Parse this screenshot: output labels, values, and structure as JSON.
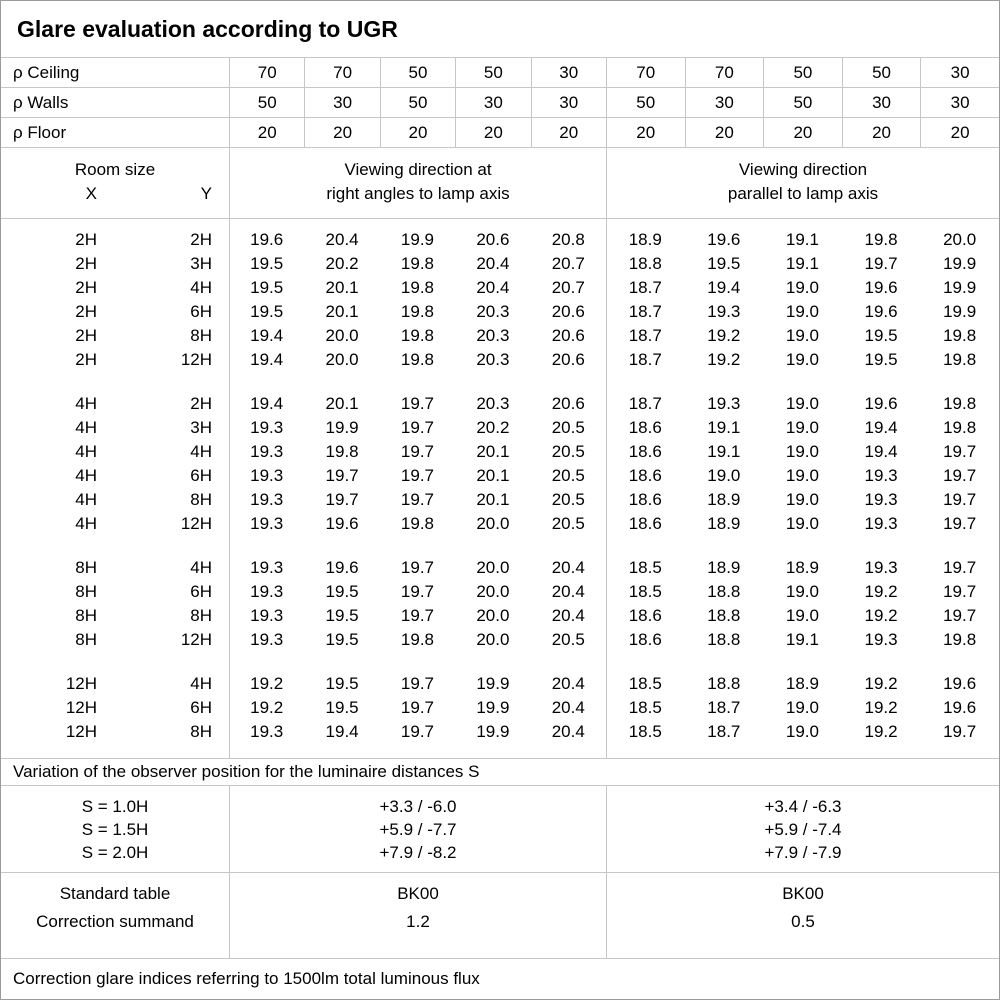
{
  "title": "Glare evaluation according to UGR",
  "reflectance_rows": [
    {
      "label": "ρ Ceiling",
      "values": [
        "70",
        "70",
        "50",
        "50",
        "30",
        "70",
        "70",
        "50",
        "50",
        "30"
      ]
    },
    {
      "label": "ρ Walls",
      "values": [
        "50",
        "30",
        "50",
        "30",
        "30",
        "50",
        "30",
        "50",
        "30",
        "30"
      ]
    },
    {
      "label": "ρ Floor",
      "values": [
        "20",
        "20",
        "20",
        "20",
        "20",
        "20",
        "20",
        "20",
        "20",
        "20"
      ]
    }
  ],
  "header": {
    "room_size": "Room size",
    "x": "X",
    "y": "Y"
  },
  "sections": {
    "left": {
      "line1": "Viewing direction at",
      "line2": "right angles to lamp axis"
    },
    "right": {
      "line1": "Viewing direction",
      "line2": "parallel to lamp axis"
    }
  },
  "blocks": [
    {
      "rows": [
        {
          "x": "2H",
          "y": "2H",
          "v": [
            "19.6",
            "20.4",
            "19.9",
            "20.6",
            "20.8",
            "18.9",
            "19.6",
            "19.1",
            "19.8",
            "20.0"
          ]
        },
        {
          "x": "2H",
          "y": "3H",
          "v": [
            "19.5",
            "20.2",
            "19.8",
            "20.4",
            "20.7",
            "18.8",
            "19.5",
            "19.1",
            "19.7",
            "19.9"
          ]
        },
        {
          "x": "2H",
          "y": "4H",
          "v": [
            "19.5",
            "20.1",
            "19.8",
            "20.4",
            "20.7",
            "18.7",
            "19.4",
            "19.0",
            "19.6",
            "19.9"
          ]
        },
        {
          "x": "2H",
          "y": "6H",
          "v": [
            "19.5",
            "20.1",
            "19.8",
            "20.3",
            "20.6",
            "18.7",
            "19.3",
            "19.0",
            "19.6",
            "19.9"
          ]
        },
        {
          "x": "2H",
          "y": "8H",
          "v": [
            "19.4",
            "20.0",
            "19.8",
            "20.3",
            "20.6",
            "18.7",
            "19.2",
            "19.0",
            "19.5",
            "19.8"
          ]
        },
        {
          "x": "2H",
          "y": "12H",
          "v": [
            "19.4",
            "20.0",
            "19.8",
            "20.3",
            "20.6",
            "18.7",
            "19.2",
            "19.0",
            "19.5",
            "19.8"
          ]
        }
      ]
    },
    {
      "rows": [
        {
          "x": "4H",
          "y": "2H",
          "v": [
            "19.4",
            "20.1",
            "19.7",
            "20.3",
            "20.6",
            "18.7",
            "19.3",
            "19.0",
            "19.6",
            "19.8"
          ]
        },
        {
          "x": "4H",
          "y": "3H",
          "v": [
            "19.3",
            "19.9",
            "19.7",
            "20.2",
            "20.5",
            "18.6",
            "19.1",
            "19.0",
            "19.4",
            "19.8"
          ]
        },
        {
          "x": "4H",
          "y": "4H",
          "v": [
            "19.3",
            "19.8",
            "19.7",
            "20.1",
            "20.5",
            "18.6",
            "19.1",
            "19.0",
            "19.4",
            "19.7"
          ]
        },
        {
          "x": "4H",
          "y": "6H",
          "v": [
            "19.3",
            "19.7",
            "19.7",
            "20.1",
            "20.5",
            "18.6",
            "19.0",
            "19.0",
            "19.3",
            "19.7"
          ]
        },
        {
          "x": "4H",
          "y": "8H",
          "v": [
            "19.3",
            "19.7",
            "19.7",
            "20.1",
            "20.5",
            "18.6",
            "18.9",
            "19.0",
            "19.3",
            "19.7"
          ]
        },
        {
          "x": "4H",
          "y": "12H",
          "v": [
            "19.3",
            "19.6",
            "19.8",
            "20.0",
            "20.5",
            "18.6",
            "18.9",
            "19.0",
            "19.3",
            "19.7"
          ]
        }
      ]
    },
    {
      "rows": [
        {
          "x": "8H",
          "y": "4H",
          "v": [
            "19.3",
            "19.6",
            "19.7",
            "20.0",
            "20.4",
            "18.5",
            "18.9",
            "18.9",
            "19.3",
            "19.7"
          ]
        },
        {
          "x": "8H",
          "y": "6H",
          "v": [
            "19.3",
            "19.5",
            "19.7",
            "20.0",
            "20.4",
            "18.5",
            "18.8",
            "19.0",
            "19.2",
            "19.7"
          ]
        },
        {
          "x": "8H",
          "y": "8H",
          "v": [
            "19.3",
            "19.5",
            "19.7",
            "20.0",
            "20.4",
            "18.6",
            "18.8",
            "19.0",
            "19.2",
            "19.7"
          ]
        },
        {
          "x": "8H",
          "y": "12H",
          "v": [
            "19.3",
            "19.5",
            "19.8",
            "20.0",
            "20.5",
            "18.6",
            "18.8",
            "19.1",
            "19.3",
            "19.8"
          ]
        }
      ]
    },
    {
      "rows": [
        {
          "x": "12H",
          "y": "4H",
          "v": [
            "19.2",
            "19.5",
            "19.7",
            "19.9",
            "20.4",
            "18.5",
            "18.8",
            "18.9",
            "19.2",
            "19.6"
          ]
        },
        {
          "x": "12H",
          "y": "6H",
          "v": [
            "19.2",
            "19.5",
            "19.7",
            "19.9",
            "20.4",
            "18.5",
            "18.7",
            "19.0",
            "19.2",
            "19.6"
          ]
        },
        {
          "x": "12H",
          "y": "8H",
          "v": [
            "19.3",
            "19.4",
            "19.7",
            "19.9",
            "20.4",
            "18.5",
            "18.7",
            "19.0",
            "19.2",
            "19.7"
          ]
        }
      ]
    }
  ],
  "variation_note": "Variation of the observer position for the luminaire distances S",
  "observer_variation": {
    "labels": [
      "S = 1.0H",
      "S = 1.5H",
      "S = 2.0H"
    ],
    "left": [
      "+3.3 / -6.0",
      "+5.9 / -7.7",
      "+7.9 / -8.2"
    ],
    "right": [
      "+3.4 / -6.3",
      "+5.9 / -7.4",
      "+7.9 / -7.9"
    ]
  },
  "standard": {
    "labels": [
      "Standard table",
      "Correction summand"
    ],
    "left": [
      "BK00",
      "1.2"
    ],
    "right": [
      "BK00",
      "0.5"
    ]
  },
  "footer_note": "Correction glare indices referring to 1500lm total luminous flux"
}
